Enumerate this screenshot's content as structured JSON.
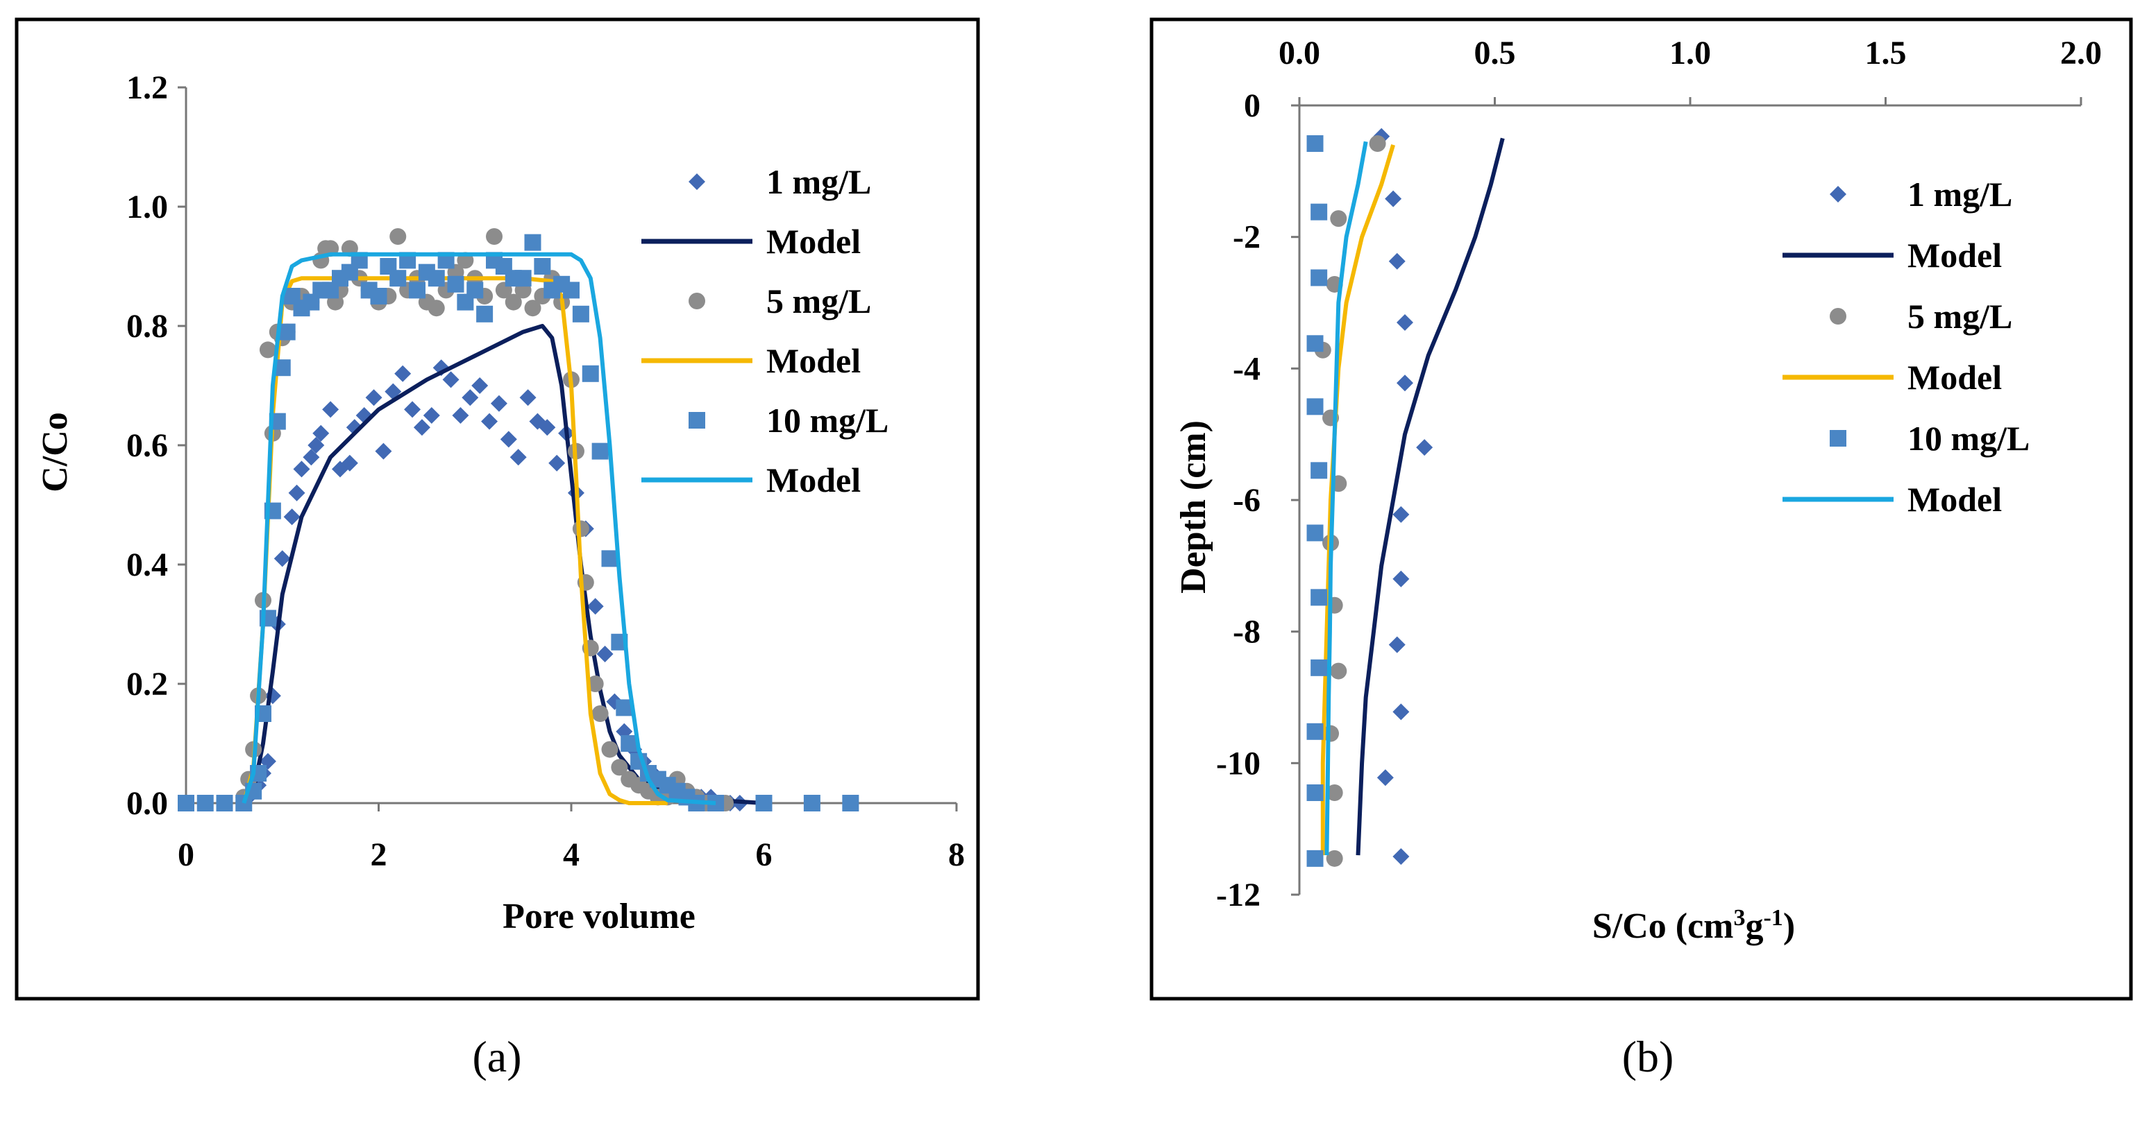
{
  "chart_data": [
    {
      "type": "scatter",
      "panel_label": "(a)",
      "title": "",
      "xlabel": "Pore volume",
      "ylabel": "C/Co",
      "xlim": [
        0,
        8
      ],
      "ylim": [
        0,
        1.2
      ],
      "x_ticks": [
        "0",
        "2",
        "4",
        "6",
        "8"
      ],
      "y_ticks": [
        "0.0",
        "0.2",
        "0.4",
        "0.6",
        "0.8",
        "1.0",
        "1.2"
      ],
      "legend_position": "right",
      "series": [
        {
          "name": "1 mg/L",
          "kind": "points",
          "marker": "diamond",
          "color": "#4169b4",
          "x": [
            0.0,
            0.2,
            0.4,
            0.6,
            0.65,
            0.7,
            0.75,
            0.8,
            0.85,
            0.9,
            0.95,
            1.0,
            1.1,
            1.15,
            1.2,
            1.3,
            1.35,
            1.4,
            1.5,
            1.6,
            1.7,
            1.75,
            1.85,
            1.95,
            2.05,
            2.15,
            2.25,
            2.35,
            2.45,
            2.55,
            2.65,
            2.75,
            2.85,
            2.95,
            3.05,
            3.15,
            3.25,
            3.35,
            3.45,
            3.55,
            3.65,
            3.75,
            3.85,
            3.95,
            4.05,
            4.15,
            4.25,
            4.35,
            4.45,
            4.55,
            4.65,
            4.75,
            4.85,
            4.95,
            5.05,
            5.15,
            5.25,
            5.35,
            5.45,
            5.55,
            5.65,
            5.75,
            6.0,
            6.5,
            6.9
          ],
          "y": [
            0.0,
            0.0,
            0.0,
            0.0,
            0.01,
            0.02,
            0.03,
            0.05,
            0.07,
            0.18,
            0.3,
            0.41,
            0.48,
            0.52,
            0.56,
            0.58,
            0.6,
            0.62,
            0.66,
            0.56,
            0.57,
            0.63,
            0.65,
            0.68,
            0.59,
            0.69,
            0.72,
            0.66,
            0.63,
            0.65,
            0.73,
            0.71,
            0.65,
            0.68,
            0.7,
            0.64,
            0.67,
            0.61,
            0.58,
            0.68,
            0.64,
            0.63,
            0.57,
            0.62,
            0.52,
            0.46,
            0.33,
            0.25,
            0.17,
            0.12,
            0.09,
            0.07,
            0.05,
            0.03,
            0.02,
            0.02,
            0.01,
            0.01,
            0.01,
            0.0,
            0.0,
            0.0,
            0.0,
            0.0,
            0.0
          ]
        },
        {
          "name": "Model",
          "kind": "line",
          "color": "#0b1f5c",
          "x": [
            0.6,
            0.7,
            0.8,
            0.9,
            1.0,
            1.2,
            1.5,
            2.0,
            2.5,
            3.0,
            3.5,
            3.7,
            3.8,
            3.9,
            4.0,
            4.1,
            4.2,
            4.3,
            4.4,
            4.5,
            4.7,
            5.0,
            5.5,
            6.0
          ],
          "y": [
            0.0,
            0.02,
            0.1,
            0.22,
            0.35,
            0.48,
            0.58,
            0.66,
            0.71,
            0.75,
            0.79,
            0.8,
            0.78,
            0.7,
            0.55,
            0.4,
            0.28,
            0.19,
            0.12,
            0.08,
            0.04,
            0.015,
            0.005,
            0.0
          ]
        },
        {
          "name": "5 mg/L",
          "kind": "points",
          "marker": "circle",
          "color": "#8c8c8c",
          "x": [
            0.0,
            0.2,
            0.4,
            0.6,
            0.65,
            0.7,
            0.75,
            0.8,
            0.85,
            0.9,
            0.95,
            1.0,
            1.05,
            1.1,
            1.2,
            1.3,
            1.4,
            1.45,
            1.5,
            1.55,
            1.6,
            1.7,
            1.8,
            1.9,
            2.0,
            2.1,
            2.2,
            2.3,
            2.4,
            2.5,
            2.6,
            2.7,
            2.8,
            2.9,
            3.0,
            3.1,
            3.2,
            3.3,
            3.4,
            3.5,
            3.6,
            3.7,
            3.8,
            3.9,
            4.0,
            4.05,
            4.1,
            4.15,
            4.2,
            4.25,
            4.3,
            4.4,
            4.5,
            4.6,
            4.7,
            4.8,
            4.9,
            5.0,
            5.1,
            5.2,
            5.3,
            5.4,
            5.6,
            6.0,
            6.5,
            6.9
          ],
          "y": [
            0.0,
            0.0,
            0.0,
            0.01,
            0.04,
            0.09,
            0.18,
            0.34,
            0.76,
            0.62,
            0.79,
            0.78,
            0.79,
            0.84,
            0.85,
            0.84,
            0.91,
            0.93,
            0.93,
            0.84,
            0.86,
            0.93,
            0.88,
            0.86,
            0.84,
            0.85,
            0.95,
            0.86,
            0.88,
            0.84,
            0.83,
            0.86,
            0.89,
            0.91,
            0.88,
            0.85,
            0.95,
            0.86,
            0.84,
            0.86,
            0.83,
            0.85,
            0.88,
            0.84,
            0.71,
            0.59,
            0.46,
            0.37,
            0.26,
            0.2,
            0.15,
            0.09,
            0.06,
            0.04,
            0.03,
            0.02,
            0.01,
            0.01,
            0.04,
            0.02,
            0.01,
            0.0,
            0.0,
            0.0,
            0.0,
            0.0
          ]
        },
        {
          "name": "Model",
          "kind": "line",
          "color": "#f5b800",
          "x": [
            0.6,
            0.7,
            0.8,
            0.9,
            1.0,
            1.1,
            1.2,
            1.5,
            2.0,
            2.5,
            3.0,
            3.5,
            3.8,
            3.9,
            4.0,
            4.05,
            4.1,
            4.2,
            4.3,
            4.4,
            4.5,
            4.6,
            5.0
          ],
          "y": [
            0.0,
            0.06,
            0.3,
            0.65,
            0.84,
            0.875,
            0.88,
            0.88,
            0.88,
            0.88,
            0.88,
            0.88,
            0.875,
            0.85,
            0.7,
            0.55,
            0.38,
            0.15,
            0.05,
            0.015,
            0.005,
            0.0,
            0.0
          ]
        },
        {
          "name": "10 mg/L",
          "kind": "points",
          "marker": "square",
          "color": "#4a86c5",
          "x": [
            0.0,
            0.2,
            0.4,
            0.6,
            0.7,
            0.75,
            0.8,
            0.85,
            0.9,
            0.95,
            1.0,
            1.05,
            1.1,
            1.2,
            1.3,
            1.4,
            1.5,
            1.6,
            1.7,
            1.8,
            1.9,
            2.0,
            2.1,
            2.2,
            2.3,
            2.4,
            2.5,
            2.6,
            2.7,
            2.8,
            2.9,
            3.0,
            3.1,
            3.2,
            3.3,
            3.4,
            3.5,
            3.6,
            3.7,
            3.8,
            3.9,
            4.0,
            4.1,
            4.2,
            4.3,
            4.4,
            4.5,
            4.55,
            4.6,
            4.7,
            4.8,
            4.9,
            5.0,
            5.1,
            5.2,
            5.3,
            5.5,
            6.0,
            6.5,
            6.9
          ],
          "y": [
            0.0,
            0.0,
            0.0,
            0.0,
            0.02,
            0.05,
            0.15,
            0.31,
            0.49,
            0.64,
            0.73,
            0.79,
            0.85,
            0.83,
            0.84,
            0.86,
            0.86,
            0.88,
            0.89,
            0.91,
            0.86,
            0.85,
            0.9,
            0.88,
            0.91,
            0.86,
            0.89,
            0.88,
            0.91,
            0.87,
            0.84,
            0.86,
            0.82,
            0.91,
            0.9,
            0.88,
            0.88,
            0.94,
            0.9,
            0.86,
            0.87,
            0.86,
            0.82,
            0.72,
            0.59,
            0.41,
            0.27,
            0.16,
            0.1,
            0.07,
            0.05,
            0.04,
            0.03,
            0.02,
            0.01,
            0.0,
            0.0,
            0.0,
            0.0,
            0.0
          ]
        },
        {
          "name": "Model",
          "kind": "line",
          "color": "#1aa7e0",
          "x": [
            0.6,
            0.7,
            0.8,
            0.9,
            1.0,
            1.1,
            1.2,
            1.5,
            2.0,
            2.5,
            3.0,
            3.5,
            4.0,
            4.1,
            4.2,
            4.3,
            4.4,
            4.5,
            4.6,
            4.7,
            4.8,
            4.9,
            5.0,
            5.5
          ],
          "y": [
            0.0,
            0.05,
            0.3,
            0.7,
            0.85,
            0.9,
            0.91,
            0.92,
            0.92,
            0.92,
            0.92,
            0.92,
            0.92,
            0.91,
            0.88,
            0.78,
            0.6,
            0.38,
            0.2,
            0.09,
            0.04,
            0.015,
            0.005,
            0.0
          ]
        }
      ]
    },
    {
      "type": "scatter",
      "panel_label": "(b)",
      "title": "",
      "xlabel": "S/Co (cm3g-1)",
      "xlabel_main": "S/Co (cm",
      "xlabel_sup": "3",
      "xlabel_mid": "g",
      "xlabel_sup2": "-1",
      "xlabel_end": ")",
      "ylabel": "Depth (cm)",
      "xlim": [
        0,
        2.0
      ],
      "ylim": [
        -12,
        0
      ],
      "x_ticks": [
        "0.0",
        "0.5",
        "1.0",
        "1.5",
        "2.0"
      ],
      "y_ticks": [
        "0",
        "-2",
        "-4",
        "-6",
        "-8",
        "-10",
        "-12"
      ],
      "x_axis_position": "top",
      "legend_position": "right",
      "series": [
        {
          "name": "1 mg/L",
          "kind": "points",
          "marker": "diamond",
          "color": "#4169b4",
          "x": [
            0.21,
            0.24,
            0.25,
            0.27,
            0.27,
            0.32,
            0.26,
            0.26,
            0.25,
            0.26,
            0.22,
            0.26
          ],
          "y": [
            -0.47,
            -1.42,
            -2.37,
            -3.3,
            -4.22,
            -5.2,
            -6.22,
            -7.2,
            -8.2,
            -9.22,
            -10.22,
            -11.42
          ]
        },
        {
          "name": "Model",
          "kind": "line",
          "color": "#0b1f5c",
          "x": [
            0.52,
            0.49,
            0.45,
            0.4,
            0.33,
            0.27,
            0.24,
            0.21,
            0.19,
            0.17,
            0.16,
            0.15
          ],
          "y": [
            -0.5,
            -1.2,
            -2.0,
            -2.8,
            -3.8,
            -5.0,
            -6.0,
            -7.0,
            -8.0,
            -9.0,
            -10.0,
            -11.4
          ]
        },
        {
          "name": "5 mg/L",
          "kind": "points",
          "marker": "circle",
          "color": "#8c8c8c",
          "x": [
            0.2,
            0.1,
            0.09,
            0.06,
            0.08,
            0.1,
            0.08,
            0.09,
            0.1,
            0.08,
            0.09,
            0.09
          ],
          "y": [
            -0.58,
            -1.72,
            -2.72,
            -3.72,
            -4.75,
            -5.75,
            -6.65,
            -7.6,
            -8.6,
            -9.55,
            -10.45,
            -11.45
          ]
        },
        {
          "name": "Model",
          "kind": "line",
          "color": "#f5b800",
          "x": [
            0.24,
            0.21,
            0.16,
            0.12,
            0.1,
            0.09,
            0.08,
            0.075,
            0.07,
            0.065,
            0.06,
            0.06
          ],
          "y": [
            -0.6,
            -1.2,
            -2.0,
            -3.0,
            -4.0,
            -5.0,
            -6.0,
            -7.0,
            -8.0,
            -9.0,
            -10.0,
            -11.4
          ]
        },
        {
          "name": "10 mg/L",
          "kind": "points",
          "marker": "square",
          "color": "#4a86c5",
          "x": [
            0.04,
            0.05,
            0.05,
            0.04,
            0.04,
            0.05,
            0.04,
            0.05,
            0.05,
            0.04,
            0.04,
            0.04
          ],
          "y": [
            -0.58,
            -1.62,
            -2.62,
            -3.62,
            -4.58,
            -5.55,
            -6.5,
            -7.48,
            -8.55,
            -9.52,
            -10.45,
            -11.45
          ]
        },
        {
          "name": "Model",
          "kind": "line",
          "color": "#1aa7e0",
          "x": [
            0.17,
            0.15,
            0.12,
            0.1,
            0.095,
            0.09,
            0.085,
            0.08,
            0.078,
            0.075,
            0.073,
            0.07
          ],
          "y": [
            -0.55,
            -1.2,
            -2.0,
            -3.0,
            -4.0,
            -5.0,
            -6.0,
            -7.0,
            -8.0,
            -9.0,
            -10.0,
            -11.4
          ]
        }
      ]
    }
  ]
}
